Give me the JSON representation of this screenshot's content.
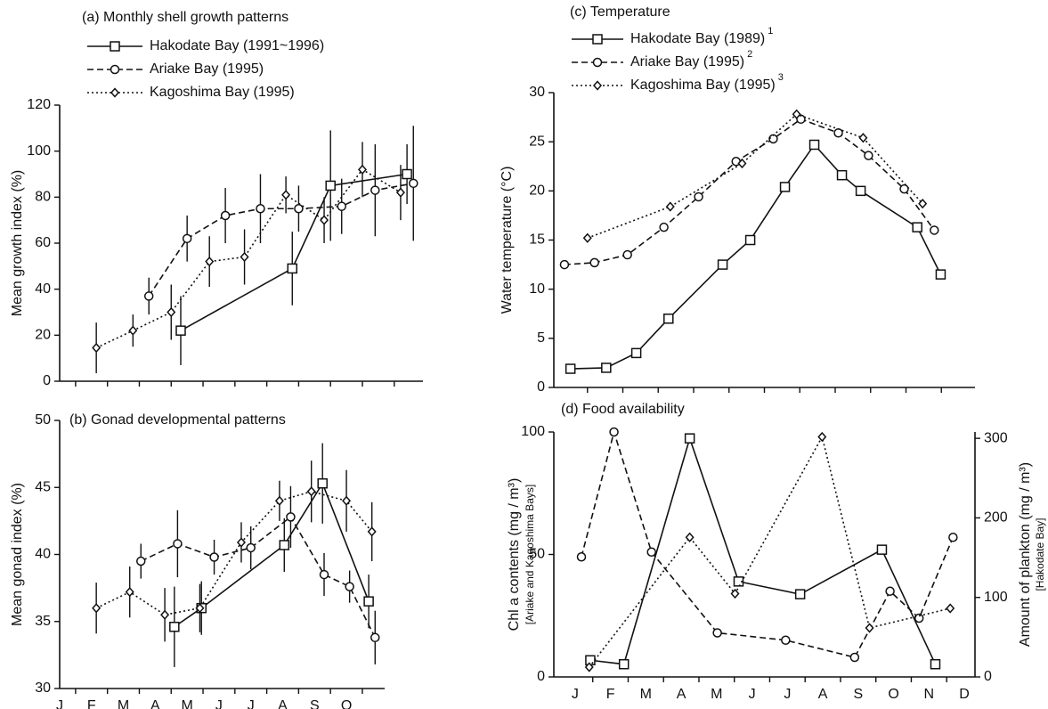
{
  "chart_data": [
    {
      "type": "line",
      "title": "(a)  Monthly shell growth patterns",
      "ylabel": "Mean growth index (%)",
      "xlim": [
        0,
        11.4
      ],
      "ylim": [
        0,
        120
      ],
      "yticks": [
        0,
        20,
        40,
        60,
        80,
        100,
        120
      ],
      "xminorticks": [
        0.5,
        1.5,
        2.5,
        3.5,
        4.5,
        5.5,
        6.5,
        7.5,
        8.5,
        9.5,
        10.5
      ],
      "legend": true,
      "series": [
        {
          "name": "Hakodate Bay (1991~1996)",
          "color": "#111111",
          "style": "solid",
          "marker": "square",
          "x": [
            3.8,
            7.3,
            8.5,
            10.9
          ],
          "values": [
            22,
            49,
            85,
            90
          ],
          "errors": [
            15,
            16,
            24,
            13
          ]
        },
        {
          "name": "Ariake Bay (1995)",
          "color": "#111111",
          "style": "dashed",
          "marker": "circle",
          "x": [
            2.8,
            4.0,
            5.2,
            6.3,
            7.5,
            8.85,
            9.9,
            11.1
          ],
          "values": [
            37,
            62,
            72,
            75,
            75,
            76,
            83,
            86
          ],
          "errors": [
            8,
            10,
            12,
            15,
            10,
            12,
            20,
            25
          ]
        },
        {
          "name": "Kagoshima Bay (1995)",
          "color": "#111111",
          "style": "dotted",
          "marker": "diamond",
          "x": [
            1.15,
            2.3,
            3.5,
            4.7,
            5.8,
            7.1,
            8.3,
            9.5,
            10.7
          ],
          "values": [
            14.5,
            22,
            30,
            52,
            54,
            81,
            70,
            92,
            82
          ],
          "errors": [
            11,
            7,
            12,
            11,
            12,
            8,
            10,
            12,
            12
          ]
        }
      ]
    },
    {
      "type": "line",
      "title": "(b)  Gonad developmental patterns",
      "ylabel": "Mean gonad index (%)",
      "xlim": [
        0,
        10.2
      ],
      "ylim": [
        30,
        50
      ],
      "yticks": [
        30,
        35,
        40,
        45,
        50
      ],
      "xticks": [
        {
          "value": 0,
          "label": "J"
        },
        {
          "value": 1,
          "label": "F"
        },
        {
          "value": 2,
          "label": "M"
        },
        {
          "value": 3,
          "label": "A"
        },
        {
          "value": 4,
          "label": "M"
        },
        {
          "value": 5,
          "label": "J"
        },
        {
          "value": 6,
          "label": "J"
        },
        {
          "value": 7,
          "label": "A"
        },
        {
          "value": 8,
          "label": "S"
        },
        {
          "value": 9,
          "label": "O"
        }
      ],
      "xminorticks": [
        0.5,
        1.5,
        2.5,
        3.5,
        4.5,
        5.5,
        6.5,
        7.5,
        8.5,
        9.5
      ],
      "legend": false,
      "series": [
        {
          "color": "#111111",
          "style": "solid",
          "marker": "square",
          "x": [
            3.6,
            4.45,
            7.05,
            8.25,
            9.7
          ],
          "values": [
            34.6,
            36,
            40.7,
            45.3,
            36.5
          ],
          "errors": [
            3,
            2,
            2,
            3,
            2
          ]
        },
        {
          "color": "#111111",
          "style": "dashed",
          "marker": "circle",
          "x": [
            2.55,
            3.7,
            4.85,
            6.0,
            7.25,
            8.3,
            9.1,
            9.9
          ],
          "values": [
            39.5,
            40.8,
            39.8,
            40.5,
            42.8,
            38.5,
            37.6,
            33.8
          ],
          "errors": [
            1.3,
            2.5,
            1.3,
            1.6,
            2.3,
            1.6,
            1.2,
            2
          ]
        },
        {
          "color": "#111111",
          "style": "dotted",
          "marker": "diamond",
          "x": [
            1.15,
            2.2,
            3.3,
            4.4,
            5.7,
            6.9,
            7.9,
            9.0,
            9.8
          ],
          "values": [
            36,
            37.2,
            35.5,
            36,
            40.9,
            44,
            44.7,
            44,
            41.7
          ],
          "errors": [
            1.9,
            1.9,
            2,
            1.8,
            1.5,
            1.5,
            2.3,
            2.3,
            2.2
          ]
        }
      ]
    },
    {
      "type": "line",
      "title": "(c) Temperature",
      "ylabel": "Water temperature (°C)",
      "xlim": [
        -0.6,
        11.3
      ],
      "ylim": [
        0,
        30
      ],
      "yticks": [
        0,
        5,
        10,
        15,
        20,
        25,
        30
      ],
      "xminorticks": [
        0.35,
        1.35,
        2.35,
        3.35,
        4.35,
        5.35,
        6.35,
        7.35,
        8.35,
        9.35,
        10.35
      ],
      "legend": true,
      "series": [
        {
          "name": "Hakodate Bay (1989)",
          "note": "1",
          "color": "#111111",
          "style": "solid",
          "marker": "square",
          "x": [
            -0.13,
            0.88,
            1.73,
            2.64,
            4.17,
            4.95,
            5.93,
            6.76,
            7.54,
            8.07,
            9.67,
            10.33
          ],
          "values": [
            1.9,
            2.0,
            3.5,
            7,
            12.5,
            15,
            20.4,
            24.7,
            21.6,
            20,
            16.3,
            11.5
          ]
        },
        {
          "name": "Ariake Bay (1995)",
          "note": "2",
          "color": "#111111",
          "style": "dashed",
          "marker": "circle",
          "x": [
            -0.3,
            0.55,
            1.48,
            2.51,
            3.49,
            4.55,
            5.6,
            6.38,
            7.44,
            8.29,
            9.3,
            10.15
          ],
          "values": [
            12.5,
            12.7,
            13.5,
            16.3,
            19.4,
            23,
            25.3,
            27.3,
            25.9,
            23.6,
            20.2,
            16
          ]
        },
        {
          "name": "Kagoshima Bay (1995)",
          "note": "3",
          "color": "#111111",
          "style": "dotted",
          "marker": "diamond",
          "x": [
            0.35,
            2.69,
            4.72,
            6.26,
            8.14,
            9.82
          ],
          "values": [
            15.2,
            18.4,
            22.8,
            27.8,
            25.4,
            18.7
          ]
        }
      ]
    },
    {
      "type": "line",
      "title": "(d) Food availability",
      "ylabel": "Chl a contents (mg / m³)",
      "ylabel_note": "[Ariake and Kagoshima Bays]",
      "y2label": "Amount of plankton (mg / m³)",
      "y2label_note": "[Hakodate Bay]",
      "xlim": [
        -0.6,
        11.3
      ],
      "ylim": [
        0,
        100
      ],
      "yticks": [
        0,
        50,
        100
      ],
      "y2lim": [
        0,
        308
      ],
      "y2ticks": [
        0,
        100,
        200,
        300
      ],
      "xticks": [
        {
          "value": 0,
          "label": "J"
        },
        {
          "value": 1,
          "label": "F"
        },
        {
          "value": 2,
          "label": "M"
        },
        {
          "value": 3,
          "label": "A"
        },
        {
          "value": 4,
          "label": "M"
        },
        {
          "value": 5,
          "label": "J"
        },
        {
          "value": 6,
          "label": "J"
        },
        {
          "value": 7,
          "label": "A"
        },
        {
          "value": 8,
          "label": "S"
        },
        {
          "value": 9,
          "label": "O"
        },
        {
          "value": 10,
          "label": "N"
        },
        {
          "value": 11,
          "label": "D"
        }
      ],
      "xminorticks": [
        0.5,
        1.5,
        2.5,
        3.5,
        4.5,
        5.5,
        6.5,
        7.5,
        8.5,
        9.5,
        10.5
      ],
      "legend": false,
      "series": [
        {
          "color": "#111111",
          "style": "solid",
          "marker": "square",
          "axis": "y2",
          "x": [
            0.43,
            1.38,
            3.24,
            4.62,
            6.36,
            8.67,
            10.18
          ],
          "values": [
            21,
            16,
            300,
            120,
            104,
            160,
            16
          ]
        },
        {
          "color": "#111111",
          "style": "dashed",
          "marker": "circle",
          "x": [
            0.18,
            1.1,
            2.16,
            4.02,
            5.95,
            7.9,
            8.9,
            9.72,
            10.68
          ],
          "values": [
            49,
            100,
            51,
            18,
            15,
            8,
            35,
            24,
            57
          ]
        },
        {
          "color": "#111111",
          "style": "dotted",
          "marker": "diamond",
          "x": [
            0.4,
            3.24,
            4.52,
            6.98,
            8.32,
            10.6
          ],
          "values": [
            4,
            57,
            34,
            98,
            20,
            28
          ]
        }
      ]
    }
  ]
}
